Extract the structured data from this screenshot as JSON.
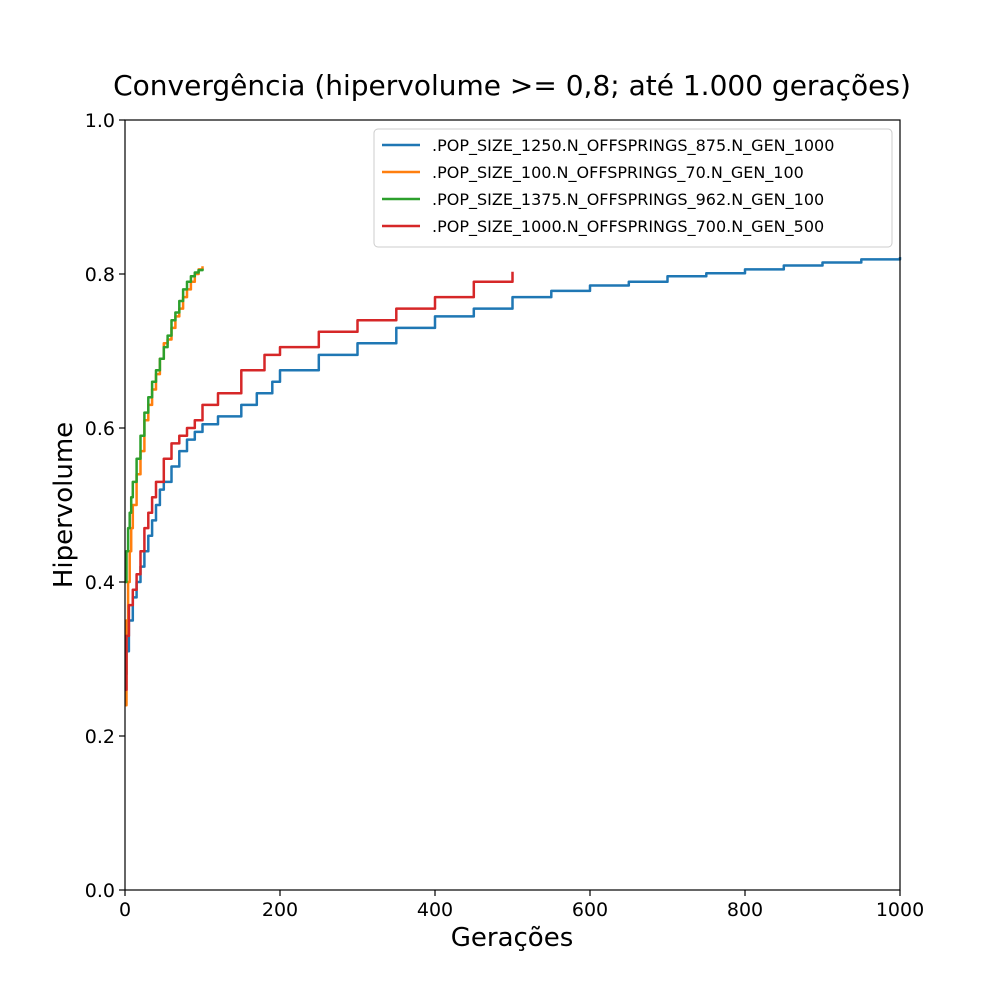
{
  "chart_data": {
    "type": "line",
    "title": "Convergência (hipervolume >= 0,8; até 1.000 gerações)",
    "xlabel": "Gerações",
    "ylabel": "Hipervolume",
    "xlim": [
      0,
      1000
    ],
    "ylim": [
      0.0,
      1.0
    ],
    "xticks": [
      0,
      200,
      400,
      600,
      800,
      1000
    ],
    "xtick_labels": [
      "0",
      "200",
      "400",
      "600",
      "800",
      "1000"
    ],
    "yticks": [
      0.0,
      0.2,
      0.4,
      0.6,
      0.8,
      1.0
    ],
    "ytick_labels": [
      "0.0",
      "0.2",
      "0.4",
      "0.6",
      "0.8",
      "1.0"
    ],
    "grid": false,
    "legend_position": "top-right",
    "series": [
      {
        "name": ".POP_SIZE_1250.N_OFFSPRINGS_875.N_GEN_1000",
        "color": "#1f77b4",
        "x": [
          0,
          2,
          5,
          10,
          15,
          20,
          25,
          30,
          35,
          40,
          45,
          50,
          60,
          70,
          80,
          90,
          100,
          120,
          150,
          170,
          190,
          200,
          250,
          300,
          350,
          400,
          450,
          500,
          550,
          600,
          650,
          700,
          750,
          800,
          850,
          900,
          950,
          1000
        ],
        "y": [
          0.28,
          0.31,
          0.35,
          0.38,
          0.4,
          0.42,
          0.44,
          0.46,
          0.48,
          0.5,
          0.52,
          0.53,
          0.55,
          0.57,
          0.585,
          0.595,
          0.605,
          0.615,
          0.63,
          0.645,
          0.66,
          0.675,
          0.695,
          0.71,
          0.73,
          0.745,
          0.755,
          0.77,
          0.778,
          0.785,
          0.79,
          0.797,
          0.801,
          0.806,
          0.811,
          0.815,
          0.819,
          0.822
        ]
      },
      {
        "name": ".POP_SIZE_100.N_OFFSPRINGS_70.N_GEN_100",
        "color": "#ff7f0e",
        "x": [
          0,
          2,
          4,
          6,
          8,
          10,
          15,
          20,
          25,
          30,
          35,
          40,
          45,
          50,
          55,
          60,
          65,
          70,
          75,
          80,
          85,
          90,
          95,
          100
        ],
        "y": [
          0.24,
          0.35,
          0.4,
          0.44,
          0.47,
          0.5,
          0.54,
          0.57,
          0.61,
          0.63,
          0.65,
          0.67,
          0.69,
          0.71,
          0.715,
          0.73,
          0.745,
          0.755,
          0.77,
          0.78,
          0.79,
          0.8,
          0.806,
          0.81
        ]
      },
      {
        "name": ".POP_SIZE_1375.N_OFFSPRINGS_962.N_GEN_100",
        "color": "#2ca02c",
        "x": [
          0,
          2,
          4,
          6,
          8,
          10,
          15,
          20,
          25,
          30,
          35,
          40,
          45,
          50,
          55,
          60,
          65,
          70,
          75,
          80,
          85,
          90,
          95,
          100
        ],
        "y": [
          0.4,
          0.44,
          0.47,
          0.49,
          0.51,
          0.53,
          0.56,
          0.59,
          0.62,
          0.64,
          0.66,
          0.675,
          0.69,
          0.705,
          0.72,
          0.74,
          0.75,
          0.765,
          0.78,
          0.79,
          0.797,
          0.802,
          0.805,
          0.807
        ]
      },
      {
        "name": ".POP_SIZE_1000.N_OFFSPRINGS_700.N_GEN_500",
        "color": "#d62728",
        "x": [
          0,
          2,
          5,
          10,
          15,
          20,
          25,
          30,
          35,
          40,
          50,
          60,
          70,
          80,
          90,
          100,
          120,
          150,
          180,
          200,
          250,
          300,
          350,
          400,
          450,
          500
        ],
        "y": [
          0.26,
          0.33,
          0.37,
          0.39,
          0.41,
          0.44,
          0.47,
          0.49,
          0.51,
          0.53,
          0.56,
          0.58,
          0.59,
          0.6,
          0.61,
          0.63,
          0.645,
          0.675,
          0.695,
          0.705,
          0.725,
          0.74,
          0.755,
          0.77,
          0.79,
          0.803
        ]
      }
    ]
  }
}
